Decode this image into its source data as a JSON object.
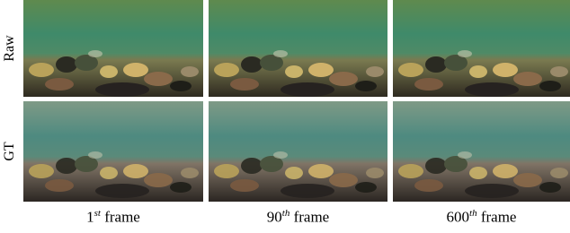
{
  "figure": {
    "rows": [
      "Raw",
      "GT"
    ],
    "columns": [
      {
        "number": "1",
        "superscript": "st",
        "text": "frame"
      },
      {
        "number": "90",
        "superscript": "th",
        "text": "frame"
      },
      {
        "number": "600",
        "superscript": "th",
        "text": "frame"
      }
    ]
  }
}
